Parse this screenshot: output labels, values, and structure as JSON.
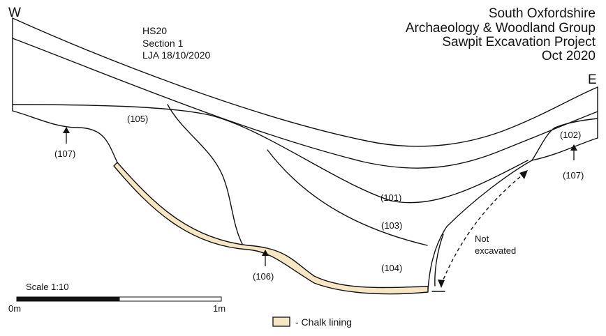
{
  "title_lines": [
    "South Oxfordshire",
    "Archaeology & Woodland Group",
    "Sawpit Excavation Project",
    "Oct 2020"
  ],
  "info_lines": [
    "HS20",
    "Section 1",
    "LJA 18/10/2020"
  ],
  "orientation": {
    "west": "W",
    "east": "E"
  },
  "contexts": {
    "c101": "(101)",
    "c102": "(102)",
    "c103": "(103)",
    "c104": "(104)",
    "c105": "(105)",
    "c106": "(106)",
    "c107_left": "(107)",
    "c107_right": "(107)"
  },
  "not_excavated": [
    "Not",
    "excavated"
  ],
  "scale": {
    "label": "Scale 1:10",
    "start": "0m",
    "end": "1m"
  },
  "legend": {
    "label": "- Chalk lining",
    "swatch_color": "#f7e6c4"
  }
}
